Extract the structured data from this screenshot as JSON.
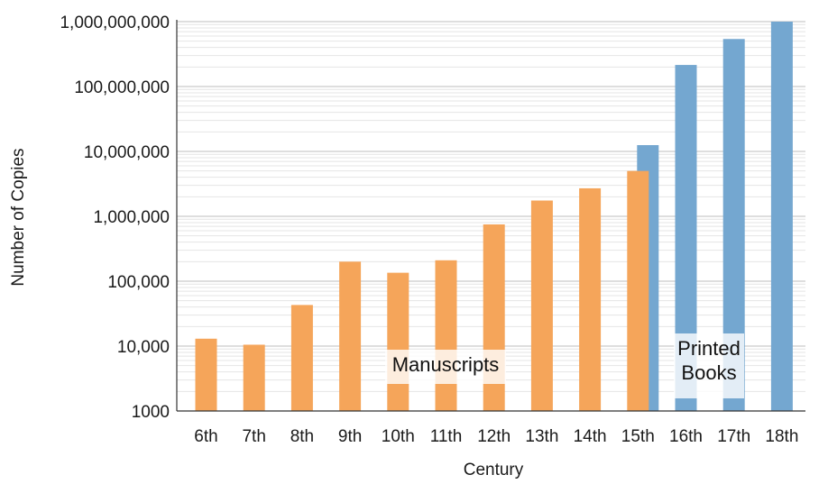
{
  "chart_data": {
    "type": "bar",
    "title": "",
    "xlabel": "Century",
    "ylabel": "Number of Copies",
    "y_scale": "log",
    "ylim": [
      1000,
      1000000000
    ],
    "y_ticks": [
      1000,
      10000,
      100000,
      1000000,
      10000000,
      100000000,
      1000000000
    ],
    "y_tick_labels": [
      "1000",
      "10,000",
      "100,000",
      "1,000,000",
      "10,000,000",
      "100,000,000",
      "1,000,000,000"
    ],
    "grid": true,
    "categories": [
      "6th",
      "7th",
      "8th",
      "9th",
      "10th",
      "11th",
      "12th",
      "13th",
      "14th",
      "15th",
      "16th",
      "17th",
      "18th"
    ],
    "series": [
      {
        "name": "Manuscripts",
        "color": "#f5a55a",
        "values": [
          13000,
          10500,
          43000,
          200000,
          135000,
          210000,
          750000,
          1750000,
          2700000,
          5000000,
          null,
          null,
          null
        ]
      },
      {
        "name": "Printed Books",
        "color": "#74a7d0",
        "values": [
          null,
          null,
          null,
          null,
          null,
          null,
          null,
          null,
          null,
          12500000,
          215000000,
          540000000,
          1000000000
        ]
      }
    ],
    "annotations": [
      {
        "text": "Manuscripts"
      },
      {
        "text": "Printed\nBooks"
      }
    ]
  }
}
